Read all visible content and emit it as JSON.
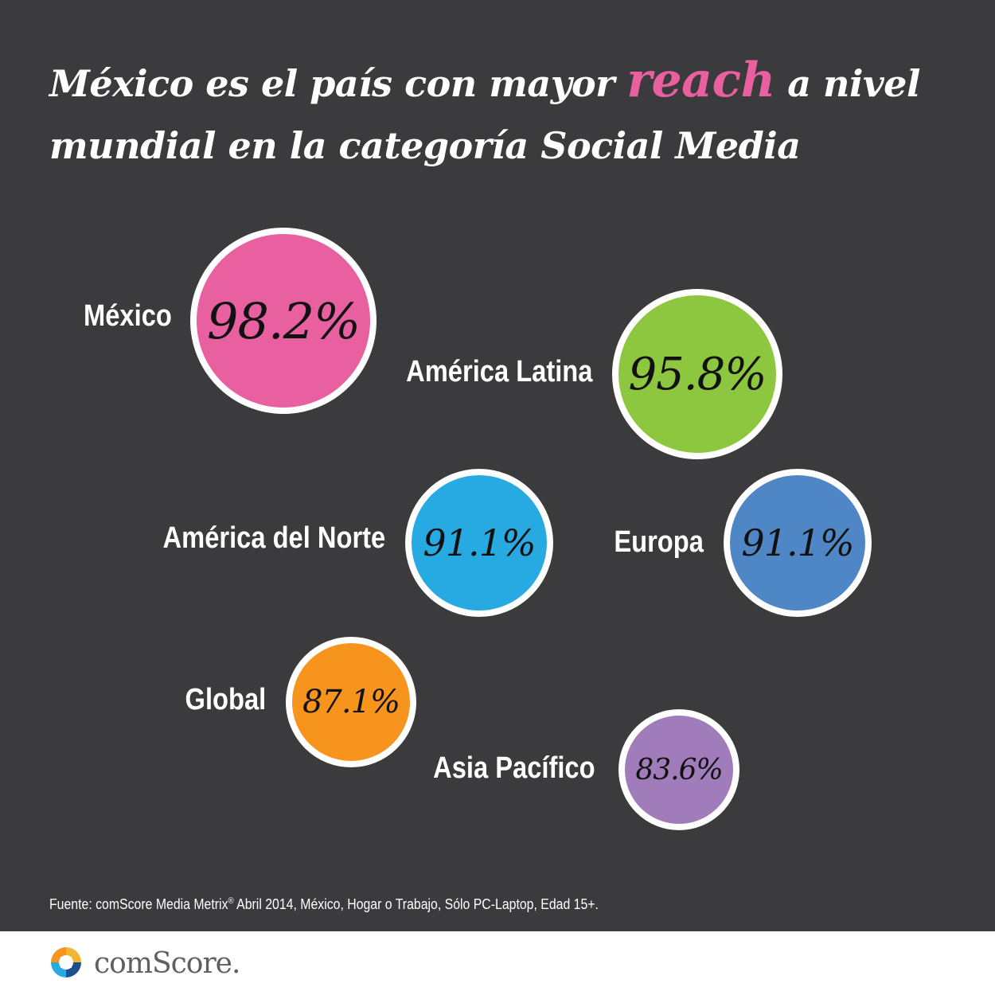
{
  "headline": {
    "part1": "México es el país con mayor ",
    "highlight": "reach",
    "part2": " a nivel",
    "line2": "mundial en la categoría Social Media"
  },
  "chart_data": {
    "type": "bubble",
    "unit": "%",
    "categories": [
      "México",
      "América Latina",
      "América del Norte",
      "Europa",
      "Global",
      "Asia Pacífico"
    ],
    "values": [
      98.2,
      95.8,
      91.1,
      91.1,
      87.1,
      83.6
    ],
    "value_labels": [
      "98.2%",
      "95.8%",
      "91.1%",
      "91.1%",
      "87.1%",
      "83.6%"
    ],
    "colors": [
      "#e8609f",
      "#8dc63f",
      "#27a9e1",
      "#4f86c6",
      "#f7941d",
      "#a07cba"
    ]
  },
  "source": {
    "prefix": "Fuente: comScore Media Metrix",
    "mark": "®",
    "suffix": " Abril 2014, México, Hogar o Trabajo, Sólo PC-Laptop, Edad 15+."
  },
  "logo": {
    "text": "comScore."
  }
}
